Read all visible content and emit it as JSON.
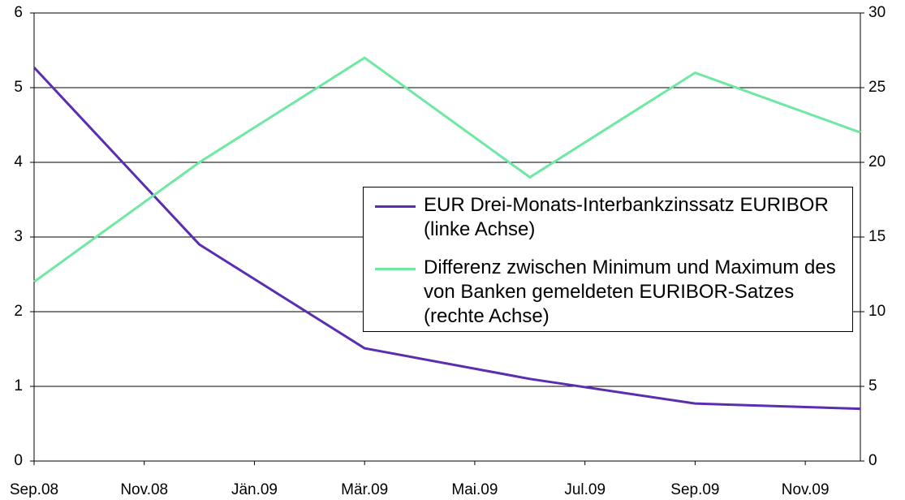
{
  "chart_data": {
    "type": "line",
    "x": [
      0,
      3,
      6,
      9,
      12,
      15
    ],
    "xlim": [
      0,
      15
    ],
    "xticks": [
      {
        "value": 0,
        "label": "Sep.08"
      },
      {
        "value": 2,
        "label": "Nov.08"
      },
      {
        "value": 4,
        "label": "Jän.09"
      },
      {
        "value": 6,
        "label": "Mär.09"
      },
      {
        "value": 8,
        "label": "Mai.09"
      },
      {
        "value": 10,
        "label": "Jul.09"
      },
      {
        "value": 12,
        "label": "Sep.09"
      },
      {
        "value": 14,
        "label": "Nov.09"
      }
    ],
    "ylim": [
      0,
      6
    ],
    "yticks": [
      0,
      1,
      2,
      3,
      4,
      5,
      6
    ],
    "y2lim": [
      0,
      30
    ],
    "y2ticks": [
      0,
      5,
      10,
      15,
      20,
      25,
      30
    ],
    "grid": true,
    "series": [
      {
        "name": "EUR Drei-Monats-Interbankzinssatz EURIBOR (linke Achse)",
        "color": "#5b2db0",
        "values": [
          5.27,
          2.9,
          1.51,
          1.1,
          0.77,
          0.7
        ]
      },
      {
        "name": "Differenz zwischen Minimum und Maximum des von Banken gemeldeten EURIBOR-Satzes (rechte Achse)",
        "color": "#6ee8a2",
        "axis": "y2",
        "values": [
          12,
          20,
          27,
          19,
          26,
          22
        ]
      }
    ]
  }
}
